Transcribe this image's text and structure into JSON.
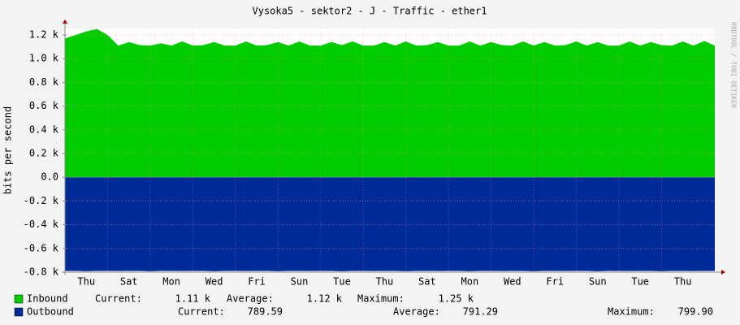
{
  "chart_data": {
    "type": "area",
    "title": "Vysoka5 - sektor2 - J - Traffic - ether1",
    "ylabel": "bits per second",
    "side_text": "RRDTOOL / TOBI OETIKER",
    "categories": [
      null,
      null,
      "Thu",
      null,
      null,
      null,
      "Sat",
      null,
      null,
      null,
      "Mon",
      null,
      null,
      null,
      "Wed",
      null,
      null,
      null,
      "Fri",
      null,
      null,
      null,
      "Sun",
      null,
      null,
      null,
      "Tue",
      null,
      null,
      null,
      "Thu",
      null,
      null,
      null,
      "Sat",
      null,
      null,
      null,
      "Mon",
      null,
      null,
      null,
      "Wed",
      null,
      null,
      null,
      "Fri",
      null,
      null,
      null,
      "Sun",
      null,
      null,
      null,
      "Tue",
      null,
      null,
      null,
      "Thu",
      null,
      null,
      null
    ],
    "series": [
      {
        "name": "Inbound",
        "color": "#00cc00",
        "values": [
          1170,
          1200,
          1230,
          1250,
          1200,
          1110,
          1140,
          1115,
          1110,
          1130,
          1110,
          1145,
          1110,
          1115,
          1140,
          1110,
          1110,
          1145,
          1110,
          1115,
          1140,
          1110,
          1145,
          1110,
          1110,
          1140,
          1115,
          1145,
          1110,
          1110,
          1140,
          1110,
          1145,
          1110,
          1115,
          1140,
          1110,
          1110,
          1145,
          1110,
          1140,
          1115,
          1110,
          1145,
          1110,
          1140,
          1110,
          1115,
          1145,
          1110,
          1140,
          1110,
          1110,
          1145,
          1110,
          1140,
          1115,
          1110,
          1145,
          1110,
          1150,
          1110
        ],
        "legend_stats": [
          "Current:",
          "1.11 k",
          "Average:",
          "1.12 k",
          "Maximum:",
          "1.25 k"
        ]
      },
      {
        "name": "Outbound",
        "color": "#002a97",
        "values": [
          -790,
          -790,
          -792,
          -790,
          -790,
          -791,
          -790,
          -790,
          -792,
          -790,
          -790,
          -791,
          -790,
          -790,
          -792,
          -790,
          -790,
          -791,
          -790,
          -790,
          -792,
          -790,
          -790,
          -791,
          -790,
          -790,
          -792,
          -790,
          -790,
          -791,
          -790,
          -790,
          -792,
          -790,
          -790,
          -791,
          -790,
          -790,
          -792,
          -790,
          -790,
          -791,
          -790,
          -790,
          -792,
          -790,
          -790,
          -791,
          -790,
          -790,
          -792,
          -790,
          -790,
          -791,
          -790,
          -790,
          -792,
          -790,
          -790,
          -791,
          -790,
          -790
        ],
        "legend_stats": [
          "Current:",
          "789.59",
          "Average:",
          "791.29",
          "Maximum:",
          "799.90"
        ]
      }
    ],
    "ylim": [
      -800,
      1255
    ],
    "yticks": [
      {
        "value": -800,
        "label": "-0.8 k"
      },
      {
        "value": -600,
        "label": "-0.6 k"
      },
      {
        "value": -400,
        "label": "-0.4 k"
      },
      {
        "value": -200,
        "label": "-0.2 k"
      },
      {
        "value": 0,
        "label": "0.0"
      },
      {
        "value": 200,
        "label": "0.2 k"
      },
      {
        "value": 400,
        "label": "0.4 k"
      },
      {
        "value": 600,
        "label": "0.6 k"
      },
      {
        "value": 800,
        "label": "0.8 k"
      },
      {
        "value": 1000,
        "label": "1.0 k"
      },
      {
        "value": 1200,
        "label": "1.2 k"
      }
    ],
    "grid": true
  }
}
